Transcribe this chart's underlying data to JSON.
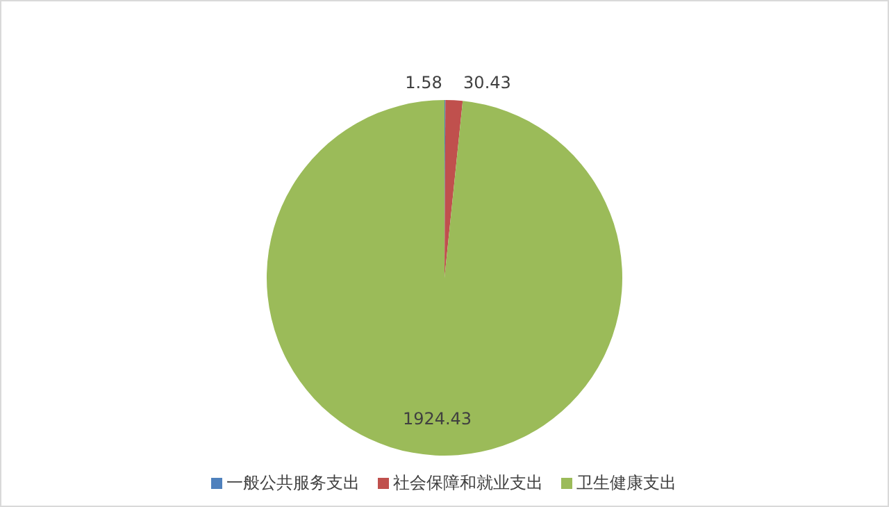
{
  "chart_data": {
    "type": "pie",
    "categories": [
      "一般公共服务支出",
      "社会保障和就业支出",
      "卫生健康支出"
    ],
    "values": [
      1.58,
      30.43,
      1924.43
    ],
    "colors": [
      "#4f81bd",
      "#c0504d",
      "#9bbb59"
    ],
    "data_labels": true,
    "legend": "bottom"
  }
}
